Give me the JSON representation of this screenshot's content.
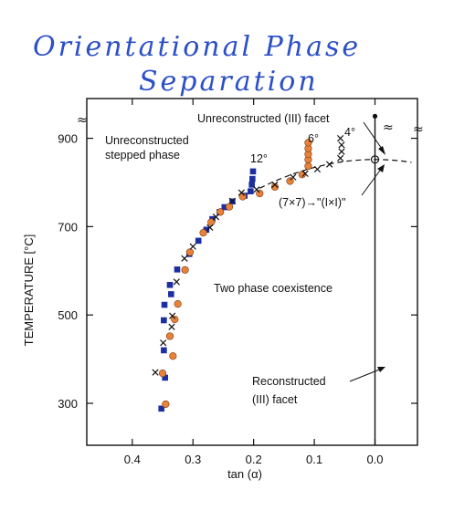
{
  "header": {
    "line1": "Orientational Phase",
    "line2": "Separation"
  },
  "chart_data": {
    "type": "scatter",
    "xlabel": "tan (α)",
    "ylabel": "TEMPERATURE [°C]",
    "x_reversed": true,
    "xlim": [
      0.475,
      -0.07
    ],
    "ylim": [
      205,
      990
    ],
    "x_ticks": [
      0.4,
      0.3,
      0.2,
      0.1,
      0.0
    ],
    "x_tick_labels": [
      "0.4",
      "0.3",
      "0.2",
      "0.1",
      "0.0"
    ],
    "y_ticks": [
      300,
      500,
      700,
      900
    ],
    "y_tick_labels": [
      "300",
      "500",
      "700",
      "900"
    ],
    "colors": {
      "squares": "#1c2fa0",
      "circles": "#e8823a",
      "crosses": "#111111",
      "title": "#2b4fc7"
    },
    "series": [
      {
        "marker": "square",
        "points": [
          [
            0.352,
            288
          ],
          [
            0.346,
            358
          ],
          [
            0.348,
            420
          ],
          [
            0.348,
            488
          ],
          [
            0.347,
            523
          ],
          [
            0.336,
            547
          ],
          [
            0.338,
            568
          ],
          [
            0.326,
            603
          ],
          [
            0.306,
            638
          ],
          [
            0.291,
            668
          ],
          [
            0.278,
            693
          ],
          [
            0.268,
            717
          ],
          [
            0.256,
            733
          ],
          [
            0.248,
            744
          ],
          [
            0.235,
            757
          ],
          [
            0.215,
            770
          ],
          [
            0.205,
            780
          ],
          [
            0.203,
            795
          ],
          [
            0.202,
            808
          ],
          [
            0.201,
            825
          ]
        ]
      },
      {
        "marker": "circle",
        "points": [
          [
            0.345,
            298
          ],
          [
            0.35,
            368
          ],
          [
            0.333,
            407
          ],
          [
            0.338,
            452
          ],
          [
            0.33,
            490
          ],
          [
            0.325,
            525
          ],
          [
            0.313,
            602
          ],
          [
            0.305,
            642
          ],
          [
            0.283,
            686
          ],
          [
            0.27,
            710
          ],
          [
            0.255,
            733
          ],
          [
            0.24,
            745
          ],
          [
            0.218,
            768
          ],
          [
            0.19,
            775
          ],
          [
            0.165,
            790
          ],
          [
            0.14,
            803
          ],
          [
            0.12,
            818
          ],
          [
            0.11,
            837
          ],
          [
            0.11,
            852
          ],
          [
            0.11,
            864
          ],
          [
            0.11,
            877
          ],
          [
            0.11,
            890
          ]
        ]
      },
      {
        "marker": "cross",
        "points": [
          [
            0.362,
            370
          ],
          [
            0.349,
            437
          ],
          [
            0.335,
            473
          ],
          [
            0.334,
            498
          ],
          [
            0.327,
            575
          ],
          [
            0.314,
            628
          ],
          [
            0.3,
            655
          ],
          [
            0.272,
            698
          ],
          [
            0.262,
            722
          ],
          [
            0.235,
            758
          ],
          [
            0.22,
            777
          ],
          [
            0.195,
            784
          ],
          [
            0.165,
            795
          ],
          [
            0.135,
            812
          ],
          [
            0.115,
            820
          ],
          [
            0.095,
            830
          ],
          [
            0.075,
            841
          ],
          [
            0.057,
            855
          ],
          [
            0.055,
            870
          ],
          [
            0.055,
            885
          ],
          [
            0.057,
            900
          ]
        ]
      }
    ],
    "annotations": {
      "unreconstructed_facet": "Unreconstructed (III) facet",
      "stepped_line1": "Unreconstructed",
      "stepped_line2": "stepped phase",
      "coexistence": "Two phase coexistence",
      "transition": "(7×7)→\"(I×I)\"",
      "reconstructed_line1": "Reconstructed",
      "reconstructed_line2": "(III) facet",
      "angle_12": "12°",
      "angle_6": "6°",
      "angle_4": "4°"
    }
  }
}
